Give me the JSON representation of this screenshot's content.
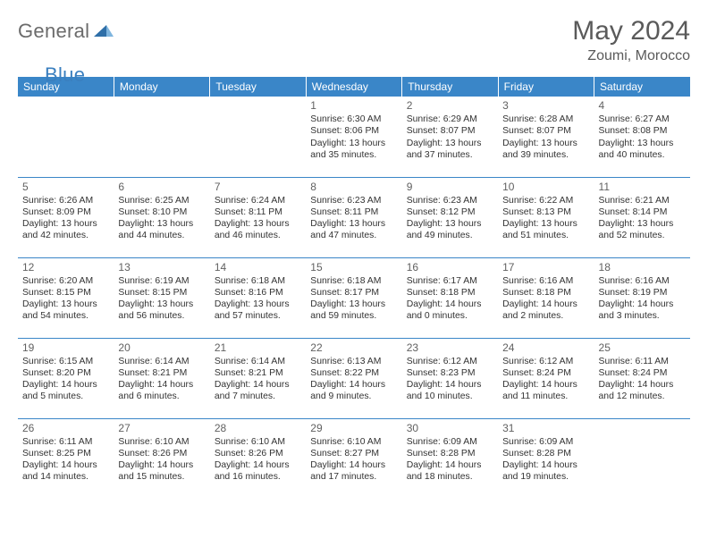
{
  "logo": {
    "general": "General",
    "blue": "Blue"
  },
  "title": "May 2024",
  "location": "Zoumi, Morocco",
  "colors": {
    "header_bg": "#3a86c8",
    "header_text": "#ffffff",
    "row_border": "#3a86c8",
    "logo_gray": "#6b6b6b",
    "logo_blue": "#3a7fbf"
  },
  "daynames": [
    "Sunday",
    "Monday",
    "Tuesday",
    "Wednesday",
    "Thursday",
    "Friday",
    "Saturday"
  ],
  "weeks": [
    [
      {
        "num": "",
        "sunrise": "",
        "sunset": "",
        "day1": "",
        "day2": ""
      },
      {
        "num": "",
        "sunrise": "",
        "sunset": "",
        "day1": "",
        "day2": ""
      },
      {
        "num": "",
        "sunrise": "",
        "sunset": "",
        "day1": "",
        "day2": ""
      },
      {
        "num": "1",
        "sunrise": "Sunrise: 6:30 AM",
        "sunset": "Sunset: 8:06 PM",
        "day1": "Daylight: 13 hours",
        "day2": "and 35 minutes."
      },
      {
        "num": "2",
        "sunrise": "Sunrise: 6:29 AM",
        "sunset": "Sunset: 8:07 PM",
        "day1": "Daylight: 13 hours",
        "day2": "and 37 minutes."
      },
      {
        "num": "3",
        "sunrise": "Sunrise: 6:28 AM",
        "sunset": "Sunset: 8:07 PM",
        "day1": "Daylight: 13 hours",
        "day2": "and 39 minutes."
      },
      {
        "num": "4",
        "sunrise": "Sunrise: 6:27 AM",
        "sunset": "Sunset: 8:08 PM",
        "day1": "Daylight: 13 hours",
        "day2": "and 40 minutes."
      }
    ],
    [
      {
        "num": "5",
        "sunrise": "Sunrise: 6:26 AM",
        "sunset": "Sunset: 8:09 PM",
        "day1": "Daylight: 13 hours",
        "day2": "and 42 minutes."
      },
      {
        "num": "6",
        "sunrise": "Sunrise: 6:25 AM",
        "sunset": "Sunset: 8:10 PM",
        "day1": "Daylight: 13 hours",
        "day2": "and 44 minutes."
      },
      {
        "num": "7",
        "sunrise": "Sunrise: 6:24 AM",
        "sunset": "Sunset: 8:11 PM",
        "day1": "Daylight: 13 hours",
        "day2": "and 46 minutes."
      },
      {
        "num": "8",
        "sunrise": "Sunrise: 6:23 AM",
        "sunset": "Sunset: 8:11 PM",
        "day1": "Daylight: 13 hours",
        "day2": "and 47 minutes."
      },
      {
        "num": "9",
        "sunrise": "Sunrise: 6:23 AM",
        "sunset": "Sunset: 8:12 PM",
        "day1": "Daylight: 13 hours",
        "day2": "and 49 minutes."
      },
      {
        "num": "10",
        "sunrise": "Sunrise: 6:22 AM",
        "sunset": "Sunset: 8:13 PM",
        "day1": "Daylight: 13 hours",
        "day2": "and 51 minutes."
      },
      {
        "num": "11",
        "sunrise": "Sunrise: 6:21 AM",
        "sunset": "Sunset: 8:14 PM",
        "day1": "Daylight: 13 hours",
        "day2": "and 52 minutes."
      }
    ],
    [
      {
        "num": "12",
        "sunrise": "Sunrise: 6:20 AM",
        "sunset": "Sunset: 8:15 PM",
        "day1": "Daylight: 13 hours",
        "day2": "and 54 minutes."
      },
      {
        "num": "13",
        "sunrise": "Sunrise: 6:19 AM",
        "sunset": "Sunset: 8:15 PM",
        "day1": "Daylight: 13 hours",
        "day2": "and 56 minutes."
      },
      {
        "num": "14",
        "sunrise": "Sunrise: 6:18 AM",
        "sunset": "Sunset: 8:16 PM",
        "day1": "Daylight: 13 hours",
        "day2": "and 57 minutes."
      },
      {
        "num": "15",
        "sunrise": "Sunrise: 6:18 AM",
        "sunset": "Sunset: 8:17 PM",
        "day1": "Daylight: 13 hours",
        "day2": "and 59 minutes."
      },
      {
        "num": "16",
        "sunrise": "Sunrise: 6:17 AM",
        "sunset": "Sunset: 8:18 PM",
        "day1": "Daylight: 14 hours",
        "day2": "and 0 minutes."
      },
      {
        "num": "17",
        "sunrise": "Sunrise: 6:16 AM",
        "sunset": "Sunset: 8:18 PM",
        "day1": "Daylight: 14 hours",
        "day2": "and 2 minutes."
      },
      {
        "num": "18",
        "sunrise": "Sunrise: 6:16 AM",
        "sunset": "Sunset: 8:19 PM",
        "day1": "Daylight: 14 hours",
        "day2": "and 3 minutes."
      }
    ],
    [
      {
        "num": "19",
        "sunrise": "Sunrise: 6:15 AM",
        "sunset": "Sunset: 8:20 PM",
        "day1": "Daylight: 14 hours",
        "day2": "and 5 minutes."
      },
      {
        "num": "20",
        "sunrise": "Sunrise: 6:14 AM",
        "sunset": "Sunset: 8:21 PM",
        "day1": "Daylight: 14 hours",
        "day2": "and 6 minutes."
      },
      {
        "num": "21",
        "sunrise": "Sunrise: 6:14 AM",
        "sunset": "Sunset: 8:21 PM",
        "day1": "Daylight: 14 hours",
        "day2": "and 7 minutes."
      },
      {
        "num": "22",
        "sunrise": "Sunrise: 6:13 AM",
        "sunset": "Sunset: 8:22 PM",
        "day1": "Daylight: 14 hours",
        "day2": "and 9 minutes."
      },
      {
        "num": "23",
        "sunrise": "Sunrise: 6:12 AM",
        "sunset": "Sunset: 8:23 PM",
        "day1": "Daylight: 14 hours",
        "day2": "and 10 minutes."
      },
      {
        "num": "24",
        "sunrise": "Sunrise: 6:12 AM",
        "sunset": "Sunset: 8:24 PM",
        "day1": "Daylight: 14 hours",
        "day2": "and 11 minutes."
      },
      {
        "num": "25",
        "sunrise": "Sunrise: 6:11 AM",
        "sunset": "Sunset: 8:24 PM",
        "day1": "Daylight: 14 hours",
        "day2": "and 12 minutes."
      }
    ],
    [
      {
        "num": "26",
        "sunrise": "Sunrise: 6:11 AM",
        "sunset": "Sunset: 8:25 PM",
        "day1": "Daylight: 14 hours",
        "day2": "and 14 minutes."
      },
      {
        "num": "27",
        "sunrise": "Sunrise: 6:10 AM",
        "sunset": "Sunset: 8:26 PM",
        "day1": "Daylight: 14 hours",
        "day2": "and 15 minutes."
      },
      {
        "num": "28",
        "sunrise": "Sunrise: 6:10 AM",
        "sunset": "Sunset: 8:26 PM",
        "day1": "Daylight: 14 hours",
        "day2": "and 16 minutes."
      },
      {
        "num": "29",
        "sunrise": "Sunrise: 6:10 AM",
        "sunset": "Sunset: 8:27 PM",
        "day1": "Daylight: 14 hours",
        "day2": "and 17 minutes."
      },
      {
        "num": "30",
        "sunrise": "Sunrise: 6:09 AM",
        "sunset": "Sunset: 8:28 PM",
        "day1": "Daylight: 14 hours",
        "day2": "and 18 minutes."
      },
      {
        "num": "31",
        "sunrise": "Sunrise: 6:09 AM",
        "sunset": "Sunset: 8:28 PM",
        "day1": "Daylight: 14 hours",
        "day2": "and 19 minutes."
      },
      {
        "num": "",
        "sunrise": "",
        "sunset": "",
        "day1": "",
        "day2": ""
      }
    ]
  ]
}
